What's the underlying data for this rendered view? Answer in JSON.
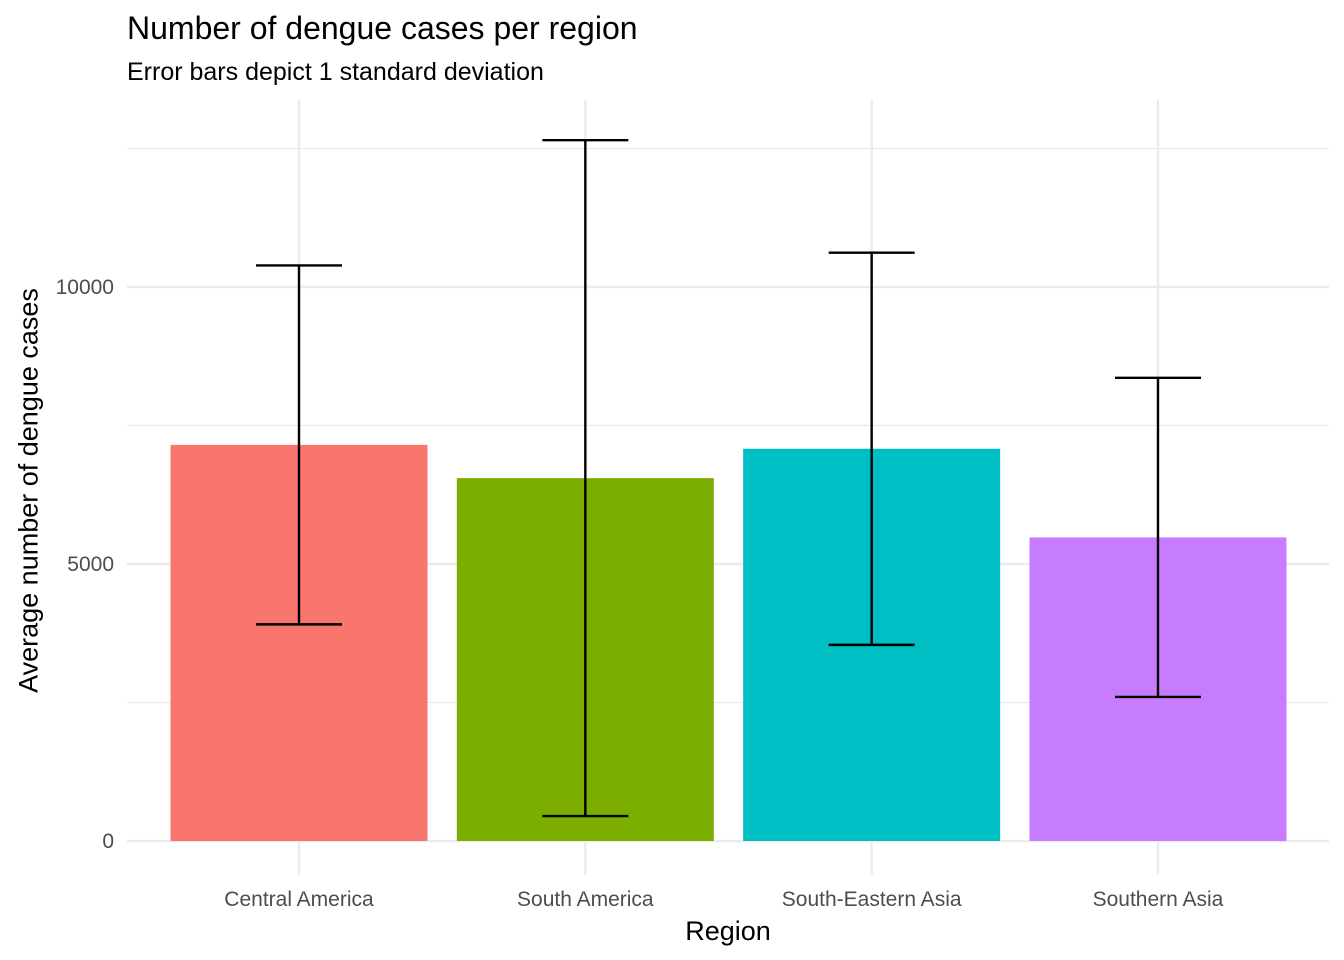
{
  "chart_data": {
    "type": "bar",
    "title": "Number of dengue cases per region",
    "subtitle": "Error bars depict 1 standard deviation",
    "xlabel": "Region",
    "ylabel": "Average number of dengue cases",
    "categories": [
      "Central America",
      "South America",
      "South-Eastern Asia",
      "Southern Asia"
    ],
    "values": [
      7150,
      6550,
      7080,
      5480
    ],
    "error_sd": [
      3240,
      6100,
      3540,
      2880
    ],
    "colors": [
      "#F8766D",
      "#7CAE00",
      "#00BFC4",
      "#C77CFF"
    ],
    "ylim": [
      -600,
      13500
    ],
    "yticks": [
      0,
      5000,
      10000
    ],
    "ytick_labels": [
      "0",
      "5000",
      "10000"
    ],
    "grid": true,
    "legend": "none"
  }
}
